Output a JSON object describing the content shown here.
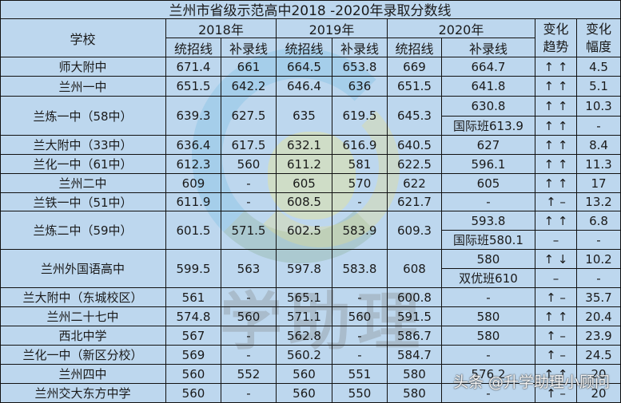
{
  "title": "兰州市省级示范高中2018 -2020年录取分数线",
  "headers": {
    "school": "学校",
    "years": [
      "2018年",
      "2019年",
      "2020年"
    ],
    "sub": [
      "统招线",
      "补录线",
      "统招线",
      "补录线",
      "统招线",
      "补录线"
    ],
    "trend": [
      "变化",
      "趋势"
    ],
    "amount": [
      "变化",
      "幅度"
    ]
  },
  "rows": [
    {
      "school": "师大附中",
      "t18": "671.4",
      "b18": "661",
      "t19": "664.5",
      "b19": "653.8",
      "t20": "669",
      "b20": [
        "664.7"
      ],
      "trend": [
        "↑ ↑"
      ],
      "amount": [
        "4.5"
      ]
    },
    {
      "school": "兰州一中",
      "t18": "651.5",
      "b18": "642.2",
      "t19": "646.4",
      "b19": "636",
      "t20": "651.5",
      "b20": [
        "641.8"
      ],
      "trend": [
        "↑ ↑"
      ],
      "amount": [
        "5.1"
      ]
    },
    {
      "school": "兰炼一中（58中）",
      "t18": "639.3",
      "b18": "627.5",
      "t19": "635",
      "b19": "619.5",
      "t20": "645.3",
      "b20": [
        "630.8",
        "国际班613.9"
      ],
      "trend": [
        "↑ ↑",
        "↑ ↑"
      ],
      "amount": [
        "10.3",
        "-"
      ]
    },
    {
      "school": "兰大附中（33中）",
      "t18": "636.4",
      "b18": "617.5",
      "t19": "632.1",
      "b19": "616.9",
      "t20": "640.5",
      "b20": [
        "627"
      ],
      "trend": [
        "↑ ↑"
      ],
      "amount": [
        "8.4"
      ]
    },
    {
      "school": "兰化一中（61中）",
      "t18": "612.3",
      "b18": "560",
      "t19": "611.2",
      "b19": "581",
      "t20": "622.5",
      "b20": [
        "596.1"
      ],
      "trend": [
        "↑ ↑"
      ],
      "amount": [
        "11.3"
      ]
    },
    {
      "school": "兰州二中",
      "t18": "609",
      "b18": "-",
      "t19": "605",
      "b19": "570",
      "t20": "622",
      "b20": [
        "605"
      ],
      "trend": [
        "↑ ↑"
      ],
      "amount": [
        "17"
      ]
    },
    {
      "school": "兰铁一中（51中）",
      "t18": "611.9",
      "b18": "-",
      "t19": "608.5",
      "b19": "-",
      "t20": "621.7",
      "b20": [
        "-"
      ],
      "trend": [
        "↑ –"
      ],
      "amount": [
        "13.2"
      ]
    },
    {
      "school": "兰炼二中（59中）",
      "t18": "601.5",
      "b18": "571.5",
      "t19": "602.5",
      "b19": "583.9",
      "t20": "609.3",
      "b20": [
        "593.8",
        "国际班580.1"
      ],
      "trend": [
        "↑ ↑",
        "–"
      ],
      "amount": [
        "6.8",
        "-"
      ]
    },
    {
      "school": "兰州外国语高中",
      "t18": "599.5",
      "b18": "563",
      "t19": "597.8",
      "b19": "583.8",
      "t20": "608",
      "b20": [
        "580",
        "双优班610"
      ],
      "trend": [
        "↑ ↓",
        "–"
      ],
      "amount": [
        "10.2",
        "-"
      ]
    },
    {
      "school": "兰大附中（东城校区）",
      "t18": "561",
      "b18": "-",
      "t19": "565.1",
      "b19": "-",
      "t20": "600.8",
      "b20": [
        "-"
      ],
      "trend": [
        "↑ –"
      ],
      "amount": [
        "35.7"
      ]
    },
    {
      "school": "兰州二十七中",
      "t18": "574.8",
      "b18": "560",
      "t19": "571.1",
      "b19": "560",
      "t20": "591.5",
      "b20": [
        "580"
      ],
      "trend": [
        "↑ ↑"
      ],
      "amount": [
        "20.4"
      ]
    },
    {
      "school": "西北中学",
      "t18": "567",
      "b18": "-",
      "t19": "562.8",
      "b19": "-",
      "t20": "586.7",
      "b20": [
        "580"
      ],
      "trend": [
        "↑ –"
      ],
      "amount": [
        "23.9"
      ]
    },
    {
      "school": "兰化一中（新区分校）",
      "t18": "569",
      "b18": "-",
      "t19": "560.2",
      "b19": "-",
      "t20": "584.7",
      "b20": [
        "-"
      ],
      "trend": [
        "↑ –"
      ],
      "amount": [
        "24.5"
      ]
    },
    {
      "school": "兰州四中",
      "t18": "560",
      "b18": "552",
      "t19": "560",
      "b19": "551",
      "t20": "580",
      "b20": [
        "576.2"
      ],
      "trend": [
        "↑ ↑"
      ],
      "amount": [
        "20"
      ]
    },
    {
      "school": "兰州交大东方中学",
      "t18": "560",
      "b18": "-",
      "t19": "560",
      "b19": "550",
      "t20": "580",
      "b20": [
        "-"
      ],
      "trend": [
        "↑ –"
      ],
      "amount": [
        "20"
      ]
    }
  ],
  "watermark": {
    "logo_text": "学助理",
    "credit": "头条 @升学助理小顾问"
  }
}
